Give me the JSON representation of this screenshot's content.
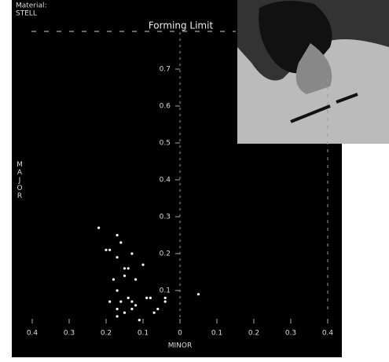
{
  "chart_data": {
    "type": "scatter",
    "title": "Forming Limit",
    "material_label": "Material:",
    "material": "STELL",
    "x_label": "MINOR",
    "y_label": "MAJOR",
    "x": [
      -0.22,
      -0.17,
      -0.2,
      -0.19,
      -0.16,
      -0.17,
      -0.13,
      -0.14,
      -0.15,
      -0.1,
      -0.18,
      -0.15,
      -0.12,
      -0.17,
      -0.14,
      -0.09,
      -0.08,
      -0.19,
      -0.16,
      -0.13,
      -0.12,
      -0.17,
      -0.15,
      -0.13,
      -0.06,
      -0.04,
      0.05,
      -0.17,
      -0.11,
      -0.07,
      -0.04
    ],
    "values": [
      0.27,
      0.25,
      0.21,
      0.21,
      0.23,
      0.19,
      0.2,
      0.16,
      0.16,
      0.17,
      0.13,
      0.14,
      0.13,
      0.1,
      0.08,
      0.08,
      0.08,
      0.07,
      0.07,
      0.07,
      0.06,
      0.05,
      0.04,
      0.05,
      0.05,
      0.07,
      0.09,
      0.03,
      0.02,
      0.04,
      0.08
    ],
    "color": "#ffffff",
    "xlim": [
      -0.4,
      0.4
    ],
    "xticks": [
      {
        "value": -0.4,
        "label": "0.4"
      },
      {
        "value": -0.3,
        "label": "0.3"
      },
      {
        "value": -0.2,
        "label": "0.2"
      },
      {
        "value": -0.1,
        "label": "0.1"
      },
      0,
      0.1,
      0.2,
      0.3,
      0.4
    ],
    "ylim": [
      0,
      0.8
    ],
    "yticks": [
      0.1,
      0.2,
      0.3,
      0.4,
      0.5,
      0.6,
      0.7
    ]
  }
}
